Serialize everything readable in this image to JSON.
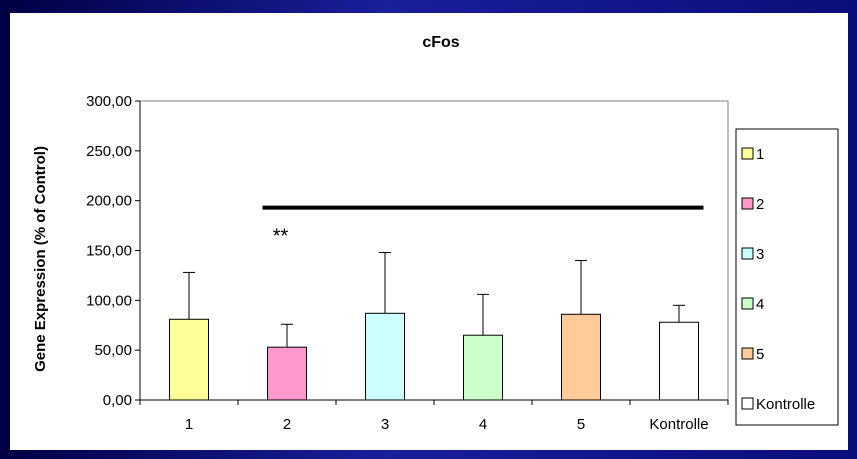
{
  "chart_data": {
    "type": "bar",
    "title": "cFos",
    "xlabel": "",
    "ylabel": "Gene Expression (% of Control)",
    "ylim": [
      0,
      300
    ],
    "yticks": [
      "0,00",
      "50,00",
      "100,00",
      "150,00",
      "200,00",
      "250,00",
      "300,00"
    ],
    "ytick_values": [
      0,
      50,
      100,
      150,
      200,
      250,
      300
    ],
    "categories": [
      "1",
      "2",
      "3",
      "4",
      "5",
      "Kontrolle"
    ],
    "values": [
      81,
      53,
      87,
      65,
      86,
      78
    ],
    "errors": [
      47,
      23,
      61,
      41,
      54,
      17
    ],
    "colors": [
      "#ffff99",
      "#ff99cc",
      "#ccffff",
      "#ccffcc",
      "#ffcc99",
      "#ffffff"
    ],
    "grid": false,
    "legend_position": "right",
    "legend": [
      "1",
      "2",
      "3",
      "4",
      "5",
      "Kontrolle"
    ],
    "significance": {
      "label": "**",
      "value": 193,
      "from_category": "2",
      "to_category": "Kontrolle"
    }
  }
}
